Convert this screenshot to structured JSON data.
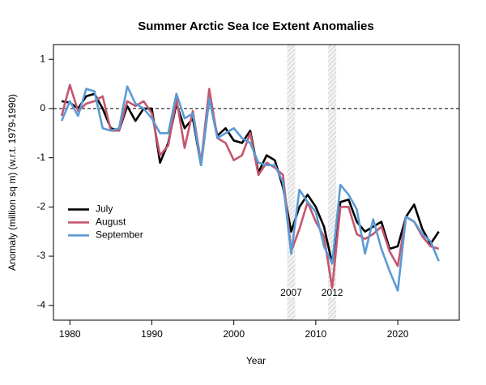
{
  "chart_data": {
    "type": "line",
    "title": "Summer Arctic Sea Ice Extent Anomalies",
    "x_label": "Year",
    "y_label": "Anomaly (million sq m) (w.r.t. 1979-1990)",
    "x": [
      1979,
      1980,
      1981,
      1982,
      1983,
      1984,
      1985,
      1986,
      1987,
      1988,
      1989,
      1990,
      1991,
      1992,
      1993,
      1994,
      1995,
      1996,
      1997,
      1998,
      1999,
      2000,
      2001,
      2002,
      2003,
      2004,
      2005,
      2006,
      2007,
      2008,
      2009,
      2010,
      2011,
      2012,
      2013,
      2014,
      2015,
      2016,
      2017,
      2018,
      2019,
      2020,
      2021,
      2022,
      2023,
      2024,
      2025
    ],
    "series": [
      {
        "name": "July",
        "color": "#000000",
        "values": [
          0.15,
          0.12,
          0.0,
          0.25,
          0.3,
          0.0,
          -0.4,
          -0.45,
          0.05,
          -0.25,
          0.0,
          0.0,
          -1.1,
          -0.7,
          0.1,
          -0.4,
          -0.2,
          -1.15,
          0.2,
          -0.55,
          -0.4,
          -0.65,
          -0.7,
          -0.45,
          -1.3,
          -0.95,
          -1.05,
          -1.6,
          -2.5,
          -2.0,
          -1.75,
          -2.0,
          -2.4,
          -3.15,
          -1.9,
          -1.85,
          -2.3,
          -2.5,
          -2.4,
          -2.3,
          -2.85,
          -2.8,
          -2.2,
          -1.95,
          -2.45,
          -2.75,
          -2.5
        ]
      },
      {
        "name": "August",
        "color": "#c4566e",
        "values": [
          -0.15,
          0.48,
          -0.05,
          0.1,
          0.15,
          0.25,
          -0.45,
          -0.45,
          0.15,
          0.05,
          0.15,
          -0.1,
          -0.95,
          -0.75,
          0.2,
          -0.8,
          -0.05,
          -1.1,
          0.4,
          -0.6,
          -0.7,
          -1.05,
          -0.95,
          -0.5,
          -1.35,
          -1.1,
          -1.2,
          -1.35,
          -2.9,
          -2.45,
          -1.9,
          -2.3,
          -2.6,
          -3.65,
          -2.0,
          -2.0,
          -2.55,
          -2.65,
          -2.55,
          -2.4,
          -2.9,
          -3.2,
          -2.2,
          -2.3,
          -2.6,
          -2.8,
          -2.85
        ]
      },
      {
        "name": "September",
        "color": "#5b9bd5",
        "values": [
          -0.25,
          0.15,
          -0.15,
          0.4,
          0.35,
          -0.4,
          -0.45,
          -0.4,
          0.45,
          0.1,
          0.0,
          -0.2,
          -0.5,
          -0.5,
          0.3,
          -0.2,
          -0.1,
          -1.15,
          0.2,
          -0.6,
          -0.5,
          -0.4,
          -0.6,
          -0.7,
          -1.1,
          -1.15,
          -1.15,
          -1.5,
          -2.95,
          -1.65,
          -1.9,
          -2.1,
          -2.8,
          -3.15,
          -1.55,
          -1.75,
          -2.05,
          -2.95,
          -2.25,
          -2.85,
          -3.3,
          -3.7,
          -2.2,
          -2.3,
          -2.55,
          -2.7,
          -3.1
        ]
      }
    ],
    "highlights": [
      {
        "x": 2007,
        "label": "2007"
      },
      {
        "x": 2012,
        "label": "2012"
      }
    ],
    "reference_line": 0,
    "xlim": [
      1978,
      2027.5
    ],
    "ylim": [
      -4.3,
      1.3
    ],
    "xticks": [
      1980,
      1990,
      2000,
      2010,
      2020
    ],
    "yticks": [
      -4,
      -3,
      -2,
      -1,
      0,
      1
    ],
    "legend": "left"
  }
}
